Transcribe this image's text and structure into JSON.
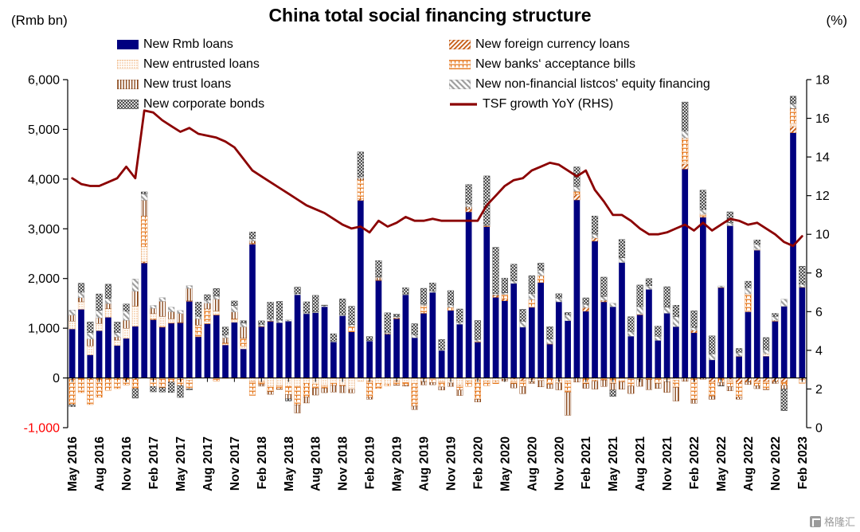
{
  "header": {
    "title": "China total social financing structure",
    "left_unit": "(Rmb bn)",
    "right_unit": "(%)"
  },
  "watermark": {
    "text": "格隆汇"
  },
  "chart_data": {
    "type": "bar",
    "stacked": true,
    "title": "China total social financing structure",
    "left_axis_label": "(Rmb bn)",
    "right_axis_label": "(%)",
    "grid": false,
    "legend_position": "top",
    "x_tick_every": 3,
    "y_left": {
      "min": -1000,
      "max": 6000,
      "step": 1000
    },
    "y_right": {
      "min": 0,
      "max": 18,
      "step": 2
    },
    "months": [
      "May 2016",
      "Jun 2016",
      "Jul 2016",
      "Aug 2016",
      "Sep 2016",
      "Oct 2016",
      "Nov 2016",
      "Dec 2016",
      "Jan 2017",
      "Feb 2017",
      "Mar 2017",
      "Apr 2017",
      "May 2017",
      "Jun 2017",
      "Jul 2017",
      "Aug 2017",
      "Sep 2017",
      "Oct 2017",
      "Nov 2017",
      "Dec 2017",
      "Jan 2018",
      "Feb 2018",
      "Mar 2018",
      "Apr 2018",
      "May 2018",
      "Jun 2018",
      "Jul 2018",
      "Aug 2018",
      "Sep 2018",
      "Oct 2018",
      "Nov 2018",
      "Dec 2018",
      "Jan 2019",
      "Feb 2019",
      "Mar 2019",
      "Apr 2019",
      "May 2019",
      "Jun 2019",
      "Jul 2019",
      "Aug 2019",
      "Sep 2019",
      "Oct 2019",
      "Nov 2019",
      "Dec 2019",
      "Jan 2020",
      "Feb 2020",
      "Mar 2020",
      "Apr 2020",
      "May 2020",
      "Jun 2020",
      "Jul 2020",
      "Aug 2020",
      "Sep 2020",
      "Oct 2020",
      "Nov 2020",
      "Dec 2020",
      "Jan 2021",
      "Feb 2021",
      "Mar 2021",
      "Apr 2021",
      "May 2021",
      "Jun 2021",
      "Jul 2021",
      "Aug 2021",
      "Sep 2021",
      "Oct 2021",
      "Nov 2021",
      "Dec 2021",
      "Jan 2022",
      "Feb 2022",
      "Mar 2022",
      "Apr 2022",
      "May 2022",
      "Jun 2022",
      "Jul 2022",
      "Aug 2022",
      "Sep 2022",
      "Oct 2022",
      "Nov 2022",
      "Dec 2022",
      "Jan 2023",
      "Feb 2023"
    ],
    "series": [
      {
        "name": "New Rmb loans",
        "style": "solid-navy",
        "values": [
          985,
          1380,
          464,
          949,
          1220,
          651,
          795,
          1040,
          2310,
          1170,
          1020,
          1100,
          1110,
          1540,
          826,
          1090,
          1270,
          663,
          1120,
          584,
          2690,
          1030,
          1140,
          1110,
          1140,
          1670,
          1290,
          1310,
          1430,
          722,
          1250,
          926,
          3570,
          740,
          1960,
          880,
          1190,
          1670,
          808,
          1300,
          1720,
          552,
          1360,
          1080,
          3340,
          720,
          3040,
          1620,
          1550,
          1900,
          1020,
          1420,
          1920,
          680,
          1530,
          1150,
          3580,
          1340,
          2750,
          1530,
          1430,
          2320,
          839,
          1270,
          1780,
          754,
          1300,
          1030,
          4200,
          908,
          3230,
          362,
          1820,
          3060,
          434,
          1330,
          2570,
          438,
          1140,
          1440,
          4930,
          1820
        ]
      },
      {
        "name": "New foreign currency loans",
        "style": "diag-orange",
        "values": [
          -30,
          -15,
          -25,
          -10,
          -20,
          -25,
          -18,
          -32,
          25,
          18,
          12,
          8,
          5,
          10,
          8,
          6,
          2,
          -4,
          -8,
          -12,
          18,
          10,
          6,
          -2,
          -8,
          -12,
          -15,
          -8,
          -6,
          -10,
          -12,
          -8,
          34,
          -11,
          6,
          -3,
          19,
          -8,
          -12,
          -21,
          -14,
          -9,
          -6,
          -11,
          56,
          10,
          14,
          45,
          46,
          -24,
          -52,
          -36,
          -21,
          8,
          -9,
          -10,
          112,
          72,
          64,
          27,
          -2,
          -11,
          -13,
          -11,
          -2,
          -3,
          -13,
          -6,
          103,
          48,
          24,
          -76,
          2,
          -29,
          -111,
          -83,
          -71,
          -72,
          -65,
          -82,
          131,
          -31
        ]
      },
      {
        "name": "New entrusted loans",
        "style": "dot-tan",
        "values": [
          157,
          151,
          180,
          145,
          170,
          110,
          203,
          405,
          310,
          104,
          204,
          80,
          -28,
          -48,
          16,
          48,
          77,
          28,
          58,
          60,
          -71,
          -75,
          -183,
          -150,
          -163,
          -164,
          -95,
          -120,
          -145,
          -95,
          -131,
          -221,
          -70,
          -51,
          -107,
          -120,
          -63,
          -83,
          -99,
          -51,
          -21,
          -67,
          -96,
          -130,
          -60,
          -36,
          -59,
          -58,
          -27,
          -48,
          -15,
          -42,
          -32,
          -17,
          -31,
          -56,
          9,
          -10,
          -45,
          -21,
          -14,
          -47,
          -15,
          -18,
          -16,
          -17,
          -22,
          -42,
          43,
          -7,
          10,
          -2,
          -13,
          -38,
          9,
          17,
          15,
          47,
          -9,
          -10,
          58,
          -7
        ]
      },
      {
        "name": "New banks‘ acceptance bills",
        "style": "ladder-orange",
        "values": [
          -506,
          -280,
          -510,
          -380,
          -230,
          -190,
          -122,
          -182,
          610,
          -170,
          -194,
          -80,
          -124,
          -170,
          214,
          244,
          -60,
          12,
          9,
          154,
          -280,
          -50,
          -90,
          -70,
          -160,
          -364,
          -274,
          -77,
          -54,
          -45,
          -13,
          109,
          379,
          -328,
          -105,
          -36,
          -77,
          -59,
          -456,
          157,
          -55,
          -105,
          57,
          -102,
          -110,
          -393,
          -98,
          -58,
          84,
          -44,
          -105,
          153,
          135,
          -109,
          -63,
          -222,
          49,
          -104,
          -22,
          -21,
          -93,
          -22,
          -133,
          15,
          -14,
          -89,
          -38,
          -141,
          479,
          -428,
          29,
          -290,
          -78,
          -108,
          -276,
          345,
          -83,
          -157,
          19,
          -55,
          296,
          -70
        ]
      },
      {
        "name": "New trust loans",
        "style": "vline-maroon",
        "values": [
          120,
          83,
          138,
          114,
          101,
          61,
          162,
          297,
          318,
          108,
          304,
          142,
          180,
          250,
          123,
          114,
          236,
          101,
          139,
          228,
          46,
          -40,
          -56,
          -9,
          -90,
          -164,
          -119,
          -139,
          -91,
          -132,
          -140,
          -72,
          34,
          -37,
          53,
          13,
          -5,
          -15,
          -68,
          -66,
          -47,
          -62,
          -67,
          -110,
          43,
          -54,
          9,
          2,
          -34,
          -85,
          -145,
          -32,
          -127,
          -87,
          -137,
          -463,
          -84,
          -94,
          -157,
          -130,
          -132,
          -147,
          -152,
          -139,
          -204,
          -102,
          -217,
          -275,
          -68,
          -75,
          -26,
          -62,
          -62,
          -83,
          -40,
          -47,
          -61,
          -6,
          -37,
          -76,
          6,
          7
        ]
      },
      {
        "name": "New non-financial listcos' equity financing",
        "style": "diag-gray",
        "values": [
          105,
          110,
          132,
          151,
          110,
          92,
          183,
          250,
          130,
          60,
          76,
          93,
          62,
          58,
          54,
          63,
          60,
          60,
          130,
          80,
          50,
          38,
          40,
          53,
          28,
          26,
          17,
          14,
          27,
          18,
          20,
          37,
          29,
          12,
          12,
          26,
          26,
          15,
          59,
          26,
          29,
          18,
          52,
          44,
          61,
          45,
          20,
          31,
          32,
          54,
          121,
          125,
          114,
          93,
          77,
          122,
          99,
          69,
          78,
          81,
          72,
          96,
          94,
          150,
          77,
          85,
          125,
          205,
          145,
          59,
          95,
          124,
          29,
          59,
          74,
          127,
          103,
          84,
          79,
          146,
          96,
          57
        ]
      },
      {
        "name": "New corporate bonds",
        "style": "cross-black",
        "values": [
          -40,
          181,
          214,
          331,
          284,
          210,
          143,
          -192,
          39,
          -110,
          -90,
          -213,
          -240,
          -21,
          284,
          110,
          153,
          160,
          92,
          44,
          132,
          70,
          338,
          377,
          -43,
          131,
          224,
          337,
          9,
          149,
          322,
          370,
          499,
          81,
          330,
          390,
          48,
          130,
          224,
          320,
          163,
          203,
          287,
          263,
          390,
          380,
          980,
          930,
          297,
          334,
          240,
          360,
          140,
          249,
          86,
          44,
          396,
          130,
          366,
          390,
          -130,
          368,
          299,
          434,
          141,
          203,
          410,
          227,
          580,
          337,
          388,
          360,
          -11,
          222,
          76,
          127,
          88,
          243,
          60,
          -436,
          149,
          364
        ]
      }
    ],
    "line": {
      "name": "TSF growth YoY (RHS)",
      "axis": "right",
      "color": "#8B0000",
      "values": [
        12.9,
        12.6,
        12.5,
        12.5,
        12.7,
        12.9,
        13.5,
        12.9,
        16.4,
        16.3,
        15.9,
        15.6,
        15.3,
        15.5,
        15.2,
        15.1,
        15.0,
        14.8,
        14.5,
        13.9,
        13.3,
        13.0,
        12.7,
        12.4,
        12.1,
        11.8,
        11.5,
        11.3,
        11.1,
        10.8,
        10.5,
        10.3,
        10.4,
        10.1,
        10.7,
        10.4,
        10.6,
        10.9,
        10.7,
        10.7,
        10.8,
        10.7,
        10.7,
        10.7,
        10.7,
        10.7,
        11.5,
        12.0,
        12.5,
        12.8,
        12.9,
        13.3,
        13.5,
        13.7,
        13.6,
        13.3,
        13.0,
        13.3,
        12.3,
        11.7,
        11.0,
        11.0,
        10.7,
        10.3,
        10.0,
        10.0,
        10.1,
        10.3,
        10.5,
        10.2,
        10.6,
        10.2,
        10.5,
        10.8,
        10.7,
        10.5,
        10.6,
        10.3,
        10.0,
        9.6,
        9.4,
        9.9
      ]
    },
    "colors": {
      "rmb_loans": "#000080",
      "foreign_currency": "#C55A11",
      "entrusted": "#F0B27A",
      "acceptance_bills": "#E36C0A",
      "trust": "#843C0C",
      "equity": "#9E9E9E",
      "corporate_bonds": "#333333",
      "tsf_line": "#8B0000",
      "negative_axis_label": "#FF0000"
    }
  }
}
